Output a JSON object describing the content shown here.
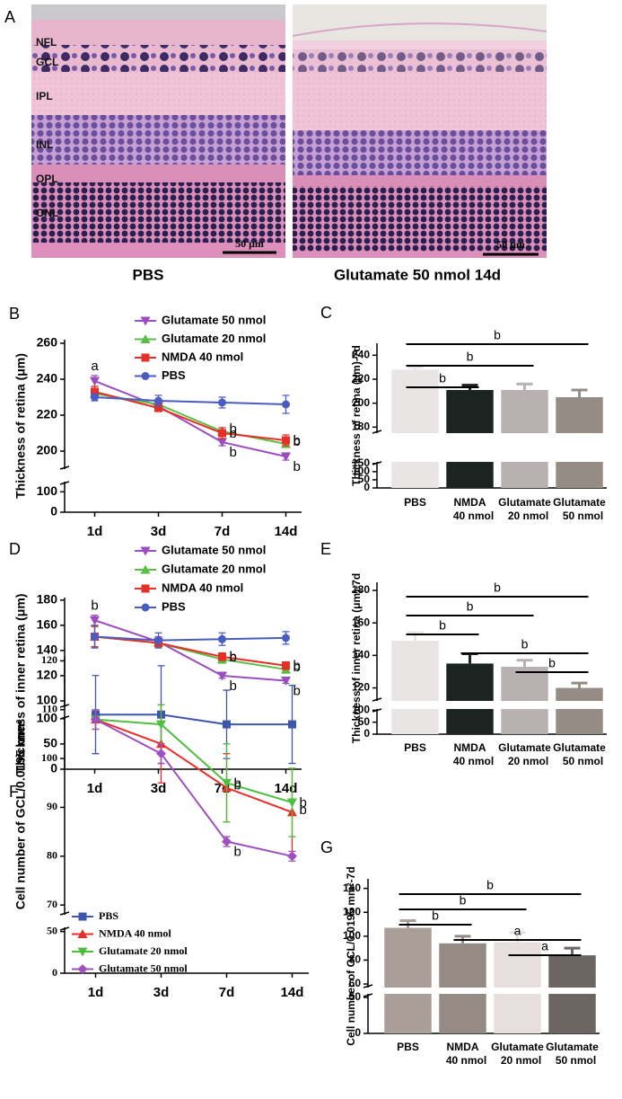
{
  "panel_a": {
    "label": "A",
    "layers": [
      "NFL",
      "GCL",
      "IPL",
      "INL",
      "OPL",
      "ONL"
    ],
    "scale_bars": [
      "50 μm",
      "50 μm"
    ],
    "captions": [
      "PBS",
      "Glutamate 50 nmol 14d"
    ]
  },
  "chart_data": [
    {
      "panel": "B",
      "type": "line",
      "ylabel": "Thickness of retina (μm)",
      "categories": [
        "1d",
        "3d",
        "7d",
        "14d"
      ],
      "ylim": [
        190,
        262
      ],
      "yticks": [
        200,
        220,
        240,
        260
      ],
      "ylim_lower": [
        0,
        150
      ],
      "yticks_lower": [
        0,
        100
      ],
      "series": [
        {
          "name": "Glutamate 50 nmol",
          "color": "#9a4dbf",
          "marker": "tri-down",
          "values": [
            239,
            225,
            205,
            197
          ],
          "errors": [
            3,
            2,
            2,
            2
          ],
          "labels": [
            "a",
            null,
            "b",
            "b"
          ]
        },
        {
          "name": "Glutamate 20 nmol",
          "color": "#5bbf45",
          "marker": "tri-up",
          "values": [
            232,
            226,
            211,
            204
          ],
          "errors": [
            2,
            2,
            2,
            2
          ],
          "labels": [
            null,
            null,
            "b",
            "b"
          ]
        },
        {
          "name": "NMDA 40 nmol",
          "color": "#e53027",
          "marker": "square",
          "values": [
            233,
            224,
            210,
            206
          ],
          "errors": [
            3,
            2,
            3,
            3
          ],
          "labels": [
            null,
            null,
            "b",
            "b"
          ]
        },
        {
          "name": "PBS",
          "color": "#4a5cc0",
          "marker": "circle",
          "values": [
            230,
            228,
            227,
            226
          ],
          "errors": [
            2,
            3,
            3,
            5
          ]
        }
      ]
    },
    {
      "panel": "C",
      "type": "bar",
      "ylabel": "Thickness of retina (μm)-7d",
      "categories": [
        [
          "PBS"
        ],
        [
          "NMDA",
          "40 nmol"
        ],
        [
          "Glutamate",
          "20 nmol"
        ],
        [
          "Glutamate",
          "50 nmol"
        ]
      ],
      "values": [
        228,
        211,
        211,
        205
      ],
      "errors": [
        2,
        4,
        5,
        6
      ],
      "colors": [
        "#e9e5e5",
        "#1b2421",
        "#b9b1b1",
        "#958c85"
      ],
      "ylim": [
        175,
        250
      ],
      "yticks": [
        180,
        200,
        220,
        240
      ],
      "ylim_lower": [
        0,
        160
      ],
      "yticks_lower": [
        0,
        50,
        100,
        150
      ],
      "comparisons": [
        {
          "label": "b",
          "between": [
            0,
            3
          ]
        },
        {
          "label": "b",
          "between": [
            0,
            2
          ]
        },
        {
          "label": "b",
          "between": [
            0,
            1
          ]
        }
      ]
    },
    {
      "panel": "D",
      "type": "line",
      "ylabel": "Thickness of inner retina (μm)",
      "categories": [
        "1d",
        "3d",
        "7d",
        "14d"
      ],
      "ylim": [
        95,
        182
      ],
      "yticks": [
        100,
        120,
        140,
        160,
        180
      ],
      "ylim_lower": [
        0,
        105
      ],
      "yticks_lower": [
        0,
        50,
        100
      ],
      "series": [
        {
          "name": "Glutamate 50 nmol",
          "color": "#9a4dbf",
          "marker": "tri-down",
          "values": [
            164,
            147,
            120,
            116
          ],
          "errors": [
            4,
            4,
            2,
            2
          ],
          "labels": [
            "b",
            null,
            "b",
            "b"
          ]
        },
        {
          "name": "Glutamate 20 nmol",
          "color": "#5bbf45",
          "marker": "tri-up",
          "values": [
            151,
            146,
            133,
            125
          ],
          "errors": [
            8,
            3,
            3,
            3
          ],
          "labels": [
            null,
            null,
            "b",
            "b"
          ]
        },
        {
          "name": "NMDA 40 nmol",
          "color": "#e53027",
          "marker": "square",
          "values": [
            151,
            146,
            135,
            128
          ],
          "errors": [
            8,
            3,
            3,
            3
          ],
          "labels": [
            null,
            null,
            "b",
            "b"
          ]
        },
        {
          "name": "PBS",
          "color": "#4a5cc0",
          "marker": "circle",
          "values": [
            151,
            148,
            149,
            150
          ],
          "errors": [
            9,
            6,
            5,
            5
          ]
        }
      ]
    },
    {
      "panel": "E",
      "type": "bar",
      "ylabel": "Thickness of inner retina (μm)-7d",
      "categories": [
        [
          "PBS"
        ],
        [
          "NMDA",
          "40 nmol"
        ],
        [
          "Glutamate",
          "20 nmol"
        ],
        [
          "Glutamate",
          "50 nmol"
        ]
      ],
      "values": [
        149,
        135,
        133,
        120
      ],
      "errors": [
        5,
        6,
        4,
        3
      ],
      "colors": [
        "#e9e5e5",
        "#1b2421",
        "#b9b1b1",
        "#958c85"
      ],
      "ylim": [
        112,
        185
      ],
      "yticks": [
        120,
        140,
        160,
        180
      ],
      "ylim_lower": [
        0,
        105
      ],
      "yticks_lower": [
        0,
        50,
        100
      ],
      "comparisons": [
        {
          "label": "b",
          "between": [
            0,
            3
          ]
        },
        {
          "label": "b",
          "between": [
            0,
            2
          ]
        },
        {
          "label": "b",
          "between": [
            0,
            1
          ]
        },
        {
          "label": "b",
          "between": [
            1,
            3
          ]
        },
        {
          "label": "b",
          "between": [
            2,
            3
          ]
        }
      ]
    },
    {
      "panel": "F",
      "type": "line",
      "ylabel": "Cell number of GCL/0.0195 mm²",
      "categories": [
        "1d",
        "3d",
        "7d",
        "14d"
      ],
      "ylim": [
        68,
        121
      ],
      "yticks": [
        70,
        80,
        90,
        100,
        110,
        120
      ],
      "ylim_lower": [
        0,
        55
      ],
      "yticks_lower": [
        0,
        50
      ],
      "series": [
        {
          "name": "PBS",
          "color": "#3c55ad",
          "marker": "square",
          "values": [
            109,
            109,
            107,
            107
          ],
          "errors": [
            8,
            10,
            7,
            8
          ]
        },
        {
          "name": "NMDA 40 nmol",
          "color": "#e8302a",
          "marker": "tri-up",
          "values": [
            108,
            103,
            94,
            89
          ],
          "errors": [
            2,
            8,
            7,
            9
          ],
          "labels": [
            null,
            null,
            "b",
            "b"
          ]
        },
        {
          "name": "Glutamate 20 nmol",
          "color": "#4dbf3f",
          "marker": "tri-down",
          "values": [
            108,
            107,
            95,
            91
          ],
          "errors": [
            2,
            4,
            8,
            7
          ],
          "labels": [
            null,
            null,
            "b",
            "b"
          ]
        },
        {
          "name": "Glutamate 50 nmol",
          "color": "#a04fbf",
          "marker": "diamond",
          "values": [
            108,
            101,
            83,
            80
          ],
          "errors": [
            2,
            2,
            1,
            1
          ],
          "labels": [
            null,
            null,
            "b",
            null
          ]
        }
      ]
    },
    {
      "panel": "G",
      "type": "bar",
      "ylabel": "Cell number of GCL/0.0195 mm²-7d",
      "categories": [
        [
          "PBS"
        ],
        [
          "NMDA",
          "40 nmol"
        ],
        [
          "Glutamate",
          "20 nmol"
        ],
        [
          "Glutamate",
          "50 nmol"
        ]
      ],
      "values": [
        107,
        94,
        95,
        84
      ],
      "errors": [
        6,
        6,
        8,
        6
      ],
      "colors": [
        "#a99e98",
        "#958b84",
        "#e7dfdd",
        "#6c6562"
      ],
      "ylim": [
        57,
        148
      ],
      "yticks": [
        60,
        80,
        100,
        120,
        140
      ],
      "ylim_lower": [
        0,
        55
      ],
      "yticks_lower": [
        0,
        50
      ],
      "comparisons": [
        {
          "label": "b",
          "between": [
            0,
            3
          ]
        },
        {
          "label": "b",
          "between": [
            0,
            2
          ]
        },
        {
          "label": "b",
          "between": [
            0,
            1
          ]
        },
        {
          "label": "a",
          "between": [
            1,
            3
          ]
        },
        {
          "label": "a",
          "between": [
            2,
            3
          ]
        }
      ]
    }
  ]
}
